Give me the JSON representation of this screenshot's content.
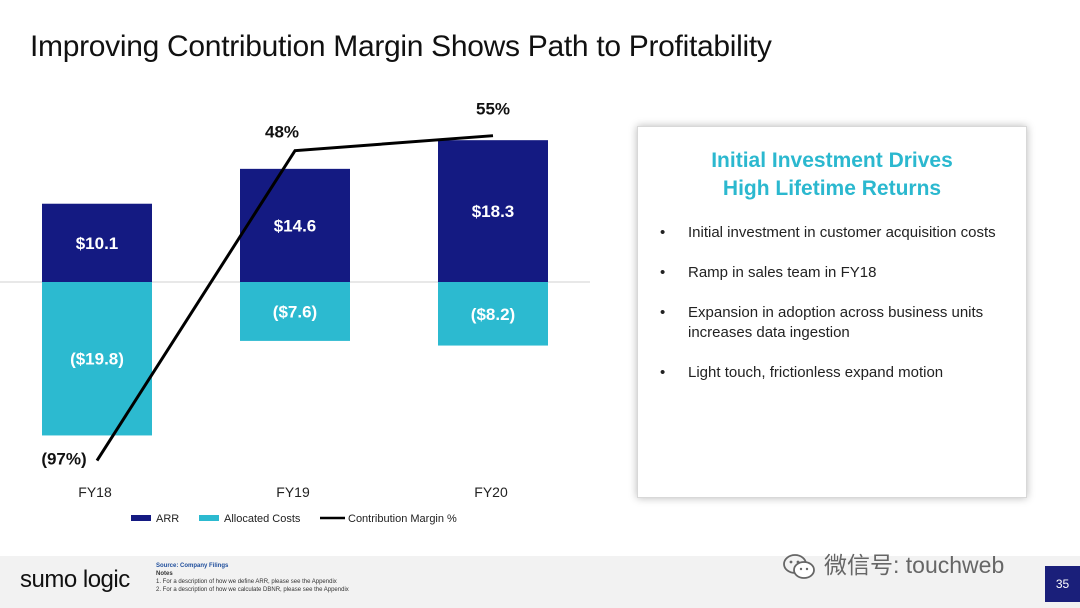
{
  "slide": {
    "title": "Improving Contribution Margin Shows Path to Profitability",
    "page_number": "35"
  },
  "panel": {
    "title_line1": "Initial Investment Drives",
    "title_line2": "High Lifetime Returns",
    "bullets": [
      "Initial investment in customer acquisition costs",
      "Ramp in sales team in FY18",
      "Expansion in adoption across business units increases data ingestion",
      "Light touch, frictionless expand motion"
    ]
  },
  "footer": {
    "logo": "sumo logic",
    "source": "Source: Company Filings",
    "notes_label": "Notes",
    "notes": [
      "1.   For a description of how we define ARR, please see the Appendix",
      "2.   For a description of how we calculate DBNR, please see the Appendix"
    ]
  },
  "watermark": "微信号: touchweb",
  "colors": {
    "arr": "#141a82",
    "costs": "#2cbad0",
    "margin_line": "#000000",
    "panel_title": "#2bb8cf"
  },
  "chart_data": {
    "type": "bar",
    "title": "",
    "categories": [
      "FY18",
      "FY19",
      "FY20"
    ],
    "series": [
      {
        "name": "ARR",
        "type": "bar",
        "values": [
          10.1,
          14.6,
          18.3
        ],
        "labels": [
          "$10.1",
          "$14.6",
          "$18.3"
        ]
      },
      {
        "name": "Allocated Costs",
        "type": "bar",
        "values": [
          -19.8,
          -7.6,
          -8.2
        ],
        "labels": [
          "($19.8)",
          "($7.6)",
          "($8.2)"
        ]
      },
      {
        "name": "Contribution Margin %",
        "type": "line",
        "values": [
          -97,
          48,
          55
        ],
        "labels": [
          "(97%)",
          "48%",
          "55%"
        ]
      }
    ],
    "legend": [
      "ARR",
      "Allocated Costs",
      "Contribution Margin %"
    ],
    "legend_position": "bottom",
    "ylim": [
      -20,
      20
    ],
    "margin_ylim": [
      -100,
      60
    ]
  }
}
